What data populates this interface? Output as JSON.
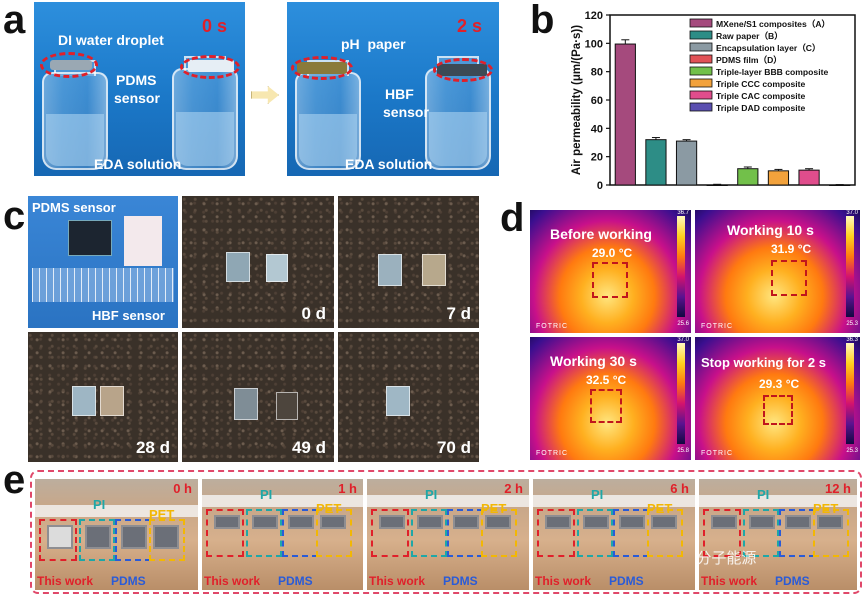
{
  "panel_letters": {
    "a": "a",
    "b": "b",
    "c": "c",
    "d": "d",
    "e": "e"
  },
  "panel_a": {
    "left": {
      "time": "0 s",
      "droplet": "DI water droplet",
      "sensor_line1": "PDMS",
      "sensor_line2": "sensor",
      "solution": "EDA solution"
    },
    "right": {
      "time": "2 s",
      "ph": "pH  paper",
      "sensor_line1": "HBF",
      "sensor_line2": "sensor",
      "solution": "EDA solution"
    }
  },
  "panel_c": {
    "pdms": "PDMS sensor",
    "hbf": "HBF sensor",
    "days": [
      "0 d",
      "7 d",
      "28 d",
      "49 d",
      "70 d"
    ]
  },
  "panel_d": {
    "fotric": "FOTRIC",
    "cells": [
      {
        "title": "Before working",
        "temp": "29.0 °C",
        "max": "36.7",
        "min": "25.6"
      },
      {
        "title": "Working 10 s",
        "temp": "31.9 °C",
        "max": "37.0",
        "min": "25.3"
      },
      {
        "title": "Working 30 s",
        "temp": "32.5 °C",
        "max": "37.0",
        "min": "25.8"
      },
      {
        "title": "Stop working for 2 s",
        "temp": "29.3 °C",
        "max": "36.3",
        "min": "25.3"
      }
    ]
  },
  "panel_e": {
    "times": [
      "0 h",
      "1 h",
      "2 h",
      "6 h",
      "12 h"
    ],
    "pi": "PI",
    "pet": "PET",
    "this_work": "This work",
    "pdms": "PDMS",
    "watermark": "公众号 · 高分子能源"
  },
  "colors": {
    "accent_red": "#e0202a",
    "blue_panel": "#1b78c8",
    "pi": "#1fa7a7",
    "pet": "#f2b705",
    "pdms": "#2a5bd7"
  },
  "chart_data": {
    "type": "bar",
    "ylabel": "Air permeability (μm/(Pa·s))",
    "ylim": [
      0,
      120
    ],
    "yticks": [
      "0",
      "20",
      "40",
      "60",
      "80",
      "100",
      "120"
    ],
    "categories": [
      "MXene/S1 composites（A）",
      "Raw paper（B）",
      "Encapsulation layer（C）",
      "PDMS film（D）",
      "Triple-layer BBB composite",
      "Triple CCC composite",
      "Triple CAC composite",
      "Triple DAD composite"
    ],
    "values": [
      99.5,
      32,
      31,
      0,
      11.5,
      10,
      10.5,
      0
    ],
    "errors": [
      3,
      1.5,
      1,
      0.5,
      1.2,
      1,
      1,
      0.3
    ],
    "colors": [
      "#a54a7d",
      "#2d8d86",
      "#8b9aa3",
      "#e15256",
      "#72c04a",
      "#f2a23c",
      "#e04d8c",
      "#5a4fb0"
    ]
  }
}
